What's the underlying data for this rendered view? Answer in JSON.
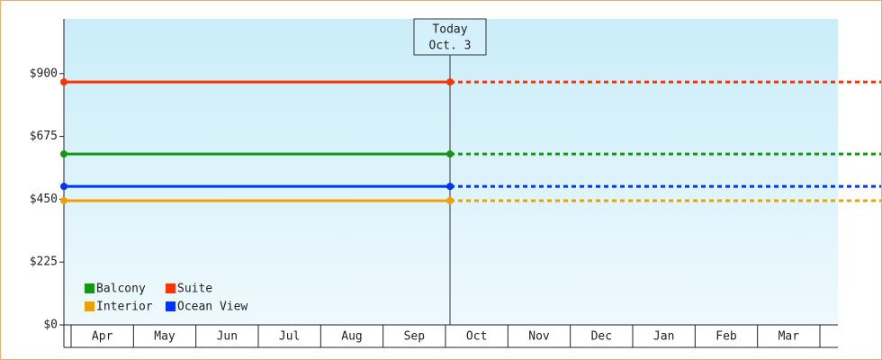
{
  "chart_data": {
    "type": "line",
    "categories": [
      "Apr",
      "May",
      "Jun",
      "Jul",
      "Aug",
      "Sep",
      "Oct",
      "Nov",
      "Dec",
      "Jan",
      "Feb",
      "Mar"
    ],
    "series": [
      {
        "name": "Balcony",
        "color": "#119911",
        "value": 612
      },
      {
        "name": "Suite",
        "color": "#ff3300",
        "value": 870
      },
      {
        "name": "Interior",
        "color": "#f0a000",
        "value": 445
      },
      {
        "name": "Ocean View",
        "color": "#0033ff",
        "value": 496
      }
    ],
    "ylim": [
      0,
      1096
    ],
    "yticks": [
      {
        "value": 0,
        "label": "$0"
      },
      {
        "value": 225,
        "label": "$225"
      },
      {
        "value": 450,
        "label": "$450"
      },
      {
        "value": 675,
        "label": "$675"
      },
      {
        "value": 900,
        "label": "$900"
      }
    ],
    "annotation": {
      "title": "Today",
      "date": "Oct. 3"
    },
    "grid": false
  }
}
